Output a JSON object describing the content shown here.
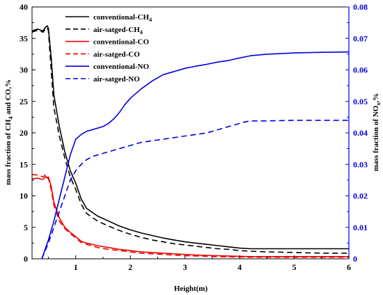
{
  "chart_data": {
    "type": "line",
    "xlabel": "Height(m)",
    "ylabel_left": {
      "prefix": "mass fraction of CH",
      "sub": "4",
      "suffix": " and CO,%"
    },
    "ylabel_right": {
      "prefix": "mass fraction of NO",
      "sub": "x",
      "suffix": ",%"
    },
    "xlim": [
      0.2,
      6
    ],
    "ylim_left": [
      0,
      40
    ],
    "ylim_right": [
      0,
      0.08
    ],
    "x_ticks": [
      "1",
      "2",
      "3",
      "4",
      "5",
      "6"
    ],
    "y_left_ticks": [
      "0",
      "5",
      "10",
      "15",
      "20",
      "25",
      "30",
      "35",
      "40"
    ],
    "y_right_ticks": [
      "0",
      "0.01",
      "0.02",
      "0.03",
      "0.04",
      "0.05",
      "0.06",
      "0.07",
      "0.08"
    ],
    "legend_position": "top-left",
    "series": [
      {
        "name": "conventional-CH4",
        "name_prefix": "conventional-CH",
        "name_sub": "4",
        "axis": "left",
        "color": "#000000",
        "dash": "solid",
        "x": [
          0.2,
          0.3,
          0.4,
          0.45,
          0.48,
          0.5,
          0.55,
          0.6,
          0.7,
          0.8,
          0.9,
          1.0,
          1.1,
          1.2,
          1.4,
          1.6,
          1.8,
          2.0,
          2.2,
          2.4,
          2.6,
          2.8,
          3.0,
          3.2,
          3.4,
          3.6,
          3.8,
          4.0,
          4.2,
          4.5,
          5.0,
          5.5,
          6.0
        ],
        "y": [
          36.2,
          36.5,
          36.2,
          36.8,
          37.0,
          36.6,
          32.0,
          26.0,
          21.0,
          17.0,
          14.0,
          12.0,
          9.5,
          8.0,
          6.8,
          6.0,
          5.2,
          4.6,
          4.1,
          3.7,
          3.3,
          3.0,
          2.7,
          2.5,
          2.3,
          2.1,
          1.9,
          1.7,
          1.6,
          1.6,
          1.6,
          1.6,
          1.6
        ]
      },
      {
        "name": "air-satged-CH4",
        "name_prefix": "air-satged-CH",
        "name_sub": "4",
        "axis": "left",
        "color": "#000000",
        "dash": "dashed",
        "x": [
          0.2,
          0.3,
          0.4,
          0.45,
          0.48,
          0.5,
          0.55,
          0.6,
          0.7,
          0.8,
          0.9,
          1.0,
          1.1,
          1.2,
          1.4,
          1.6,
          1.8,
          2.0,
          2.2,
          2.4,
          2.6,
          2.8,
          3.0,
          3.2,
          3.4,
          3.6,
          3.8,
          4.0,
          4.2,
          4.5,
          5.0,
          5.5,
          6.0
        ],
        "y": [
          36.0,
          36.3,
          36.0,
          36.5,
          36.7,
          36.2,
          30.0,
          24.0,
          19.5,
          16.0,
          13.0,
          11.0,
          8.7,
          7.2,
          6.0,
          5.2,
          4.5,
          3.9,
          3.4,
          3.0,
          2.7,
          2.4,
          2.2,
          2.0,
          1.8,
          1.6,
          1.5,
          1.3,
          1.2,
          1.1,
          1.0,
          0.9,
          0.9
        ]
      },
      {
        "name": "conventional-CO",
        "name_prefix": "conventional-CO",
        "name_sub": "",
        "axis": "left",
        "color": "#ee0000",
        "dash": "solid",
        "x": [
          0.2,
          0.3,
          0.4,
          0.45,
          0.48,
          0.5,
          0.55,
          0.6,
          0.7,
          0.8,
          0.9,
          1.0,
          1.1,
          1.2,
          1.4,
          1.6,
          1.8,
          2.0,
          2.2,
          2.4,
          2.6,
          2.8,
          3.0,
          3.2,
          3.4,
          3.6,
          3.8,
          4.0,
          4.2,
          4.5,
          5.0,
          5.5,
          6.0
        ],
        "y": [
          12.7,
          12.8,
          12.6,
          13.1,
          12.8,
          13.0,
          11.5,
          9.0,
          6.5,
          5.0,
          4.2,
          3.5,
          2.8,
          2.5,
          2.1,
          1.8,
          1.5,
          1.3,
          1.1,
          1.0,
          0.9,
          0.8,
          0.7,
          0.6,
          0.55,
          0.5,
          0.45,
          0.4,
          0.35,
          0.35,
          0.35,
          0.35,
          0.35
        ]
      },
      {
        "name": "air-satged-CO",
        "name_prefix": "air-satged-CO",
        "name_sub": "",
        "axis": "left",
        "color": "#ee0000",
        "dash": "dashed",
        "x": [
          0.2,
          0.3,
          0.4,
          0.45,
          0.48,
          0.5,
          0.55,
          0.6,
          0.7,
          0.8,
          0.9,
          1.0,
          1.1,
          1.2,
          1.4,
          1.6,
          1.8,
          2.0,
          2.2,
          2.4,
          2.6,
          2.8,
          3.0,
          3.2,
          3.4,
          3.6,
          3.8,
          4.0,
          4.2,
          4.5,
          5.0,
          5.5,
          6.0
        ],
        "y": [
          13.4,
          13.3,
          13.0,
          13.4,
          13.2,
          12.8,
          11.0,
          8.5,
          6.0,
          4.8,
          4.0,
          3.3,
          2.6,
          2.3,
          1.8,
          1.5,
          1.3,
          1.1,
          0.9,
          0.8,
          0.7,
          0.6,
          0.5,
          0.45,
          0.4,
          0.35,
          0.3,
          0.3,
          0.25,
          0.25,
          0.25,
          0.25,
          0.25
        ]
      },
      {
        "name": "conventional-NO",
        "name_prefix": "conventional-NO",
        "name_sub": "",
        "axis": "right",
        "color": "#0000dd",
        "dash": "solid",
        "x": [
          0.38,
          0.5,
          0.6,
          0.7,
          0.8,
          0.9,
          1.0,
          1.1,
          1.2,
          1.3,
          1.4,
          1.5,
          1.6,
          1.7,
          1.8,
          1.9,
          2.0,
          2.2,
          2.4,
          2.6,
          2.8,
          3.0,
          3.2,
          3.4,
          3.6,
          3.8,
          4.0,
          4.2,
          4.5,
          5.0,
          5.5,
          6.0
        ],
        "y": [
          0.0,
          0.006,
          0.012,
          0.019,
          0.026,
          0.033,
          0.038,
          0.0395,
          0.0405,
          0.041,
          0.0415,
          0.042,
          0.043,
          0.0445,
          0.0465,
          0.049,
          0.051,
          0.054,
          0.0565,
          0.0585,
          0.0595,
          0.0605,
          0.0612,
          0.0618,
          0.0625,
          0.063,
          0.0638,
          0.0645,
          0.065,
          0.0654,
          0.0656,
          0.0657
        ]
      },
      {
        "name": "air-satged-NO",
        "name_prefix": "air-satged-NO",
        "name_sub": "",
        "axis": "right",
        "color": "#0000dd",
        "dash": "dashed",
        "x": [
          0.38,
          0.5,
          0.6,
          0.7,
          0.8,
          0.9,
          1.0,
          1.1,
          1.2,
          1.3,
          1.4,
          1.6,
          1.8,
          2.0,
          2.2,
          2.4,
          2.6,
          2.8,
          3.0,
          3.2,
          3.4,
          3.6,
          3.8,
          4.0,
          4.1,
          4.2,
          4.5,
          5.0,
          5.5,
          6.0
        ],
        "y": [
          0.0,
          0.005,
          0.01,
          0.015,
          0.02,
          0.025,
          0.028,
          0.03,
          0.0315,
          0.0325,
          0.033,
          0.034,
          0.035,
          0.036,
          0.037,
          0.0375,
          0.038,
          0.0385,
          0.039,
          0.0395,
          0.04,
          0.041,
          0.042,
          0.043,
          0.0435,
          0.0438,
          0.0438,
          0.044,
          0.044,
          0.044
        ]
      }
    ]
  }
}
